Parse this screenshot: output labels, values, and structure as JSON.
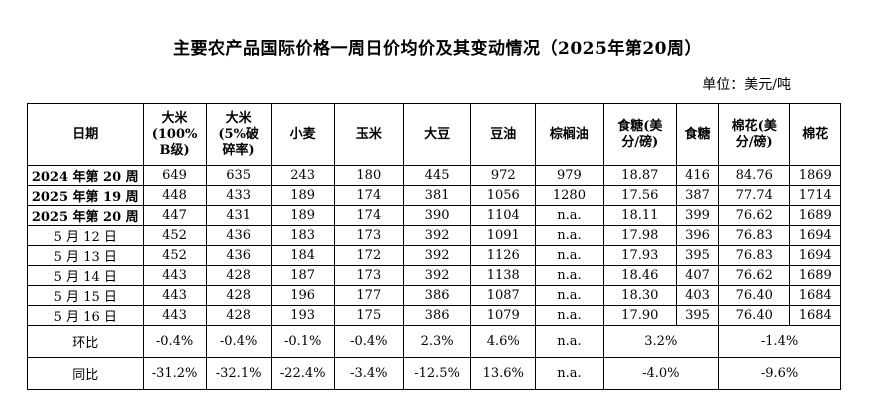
{
  "title": "主要农产品国际价格一周日价均价及其变动情况（2025年第20周）",
  "unit": "单位：美元/吨",
  "table": {
    "headers": [
      "日期",
      "大米（100% B级）",
      "大米（5%破碎率）",
      "小麦",
      "玉米",
      "大豆",
      "豆油",
      "棕榈油",
      "食糖（美分/磅）",
      "食糖",
      "棉花（美分/磅）",
      "棉花"
    ],
    "header_display": [
      "日期",
      "大米\n(100%\nB级)",
      "大米\n(5%破\n碎率)",
      "小麦",
      "玉米",
      "大豆",
      "豆油",
      "棕榈油",
      "食糖(美\n分/磅)",
      "食糖",
      "棉花(美\n分/磅)",
      "棉花"
    ],
    "rows": [
      {
        "label": "2024 年第 20 周",
        "values": [
          "649",
          "635",
          "243",
          "180",
          "445",
          "972",
          "979",
          "18.87",
          "416",
          "84.76",
          "1869"
        ]
      },
      {
        "label": "2025 年第 19 周",
        "values": [
          "448",
          "433",
          "189",
          "174",
          "381",
          "1056",
          "1280",
          "17.56",
          "387",
          "77.74",
          "1714"
        ]
      },
      {
        "label": "2025 年第 20 周",
        "values": [
          "447",
          "431",
          "189",
          "174",
          "390",
          "1104",
          "n.a.",
          "18.11",
          "399",
          "76.62",
          "1689"
        ]
      },
      {
        "label": "5 月 12 日",
        "values": [
          "452",
          "436",
          "183",
          "173",
          "392",
          "1091",
          "n.a.",
          "17.98",
          "396",
          "76.83",
          "1694"
        ]
      },
      {
        "label": "5 月 13 日",
        "values": [
          "452",
          "436",
          "184",
          "172",
          "392",
          "1126",
          "n.a.",
          "17.93",
          "395",
          "76.83",
          "1694"
        ]
      },
      {
        "label": "5 月 14 日",
        "values": [
          "443",
          "428",
          "187",
          "173",
          "392",
          "1138",
          "n.a.",
          "18.46",
          "407",
          "76.62",
          "1689"
        ]
      },
      {
        "label": "5 月 15 日",
        "values": [
          "443",
          "428",
          "196",
          "177",
          "386",
          "1087",
          "n.a.",
          "18.30",
          "403",
          "76.40",
          "1684"
        ]
      },
      {
        "label": "5 月 16 日",
        "values": [
          "443",
          "428",
          "193",
          "175",
          "386",
          "1079",
          "n.a.",
          "17.90",
          "395",
          "76.40",
          "1684"
        ]
      }
    ],
    "change_rows": [
      {
        "label": "环比",
        "values": [
          "-0.4%",
          "-0.4%",
          "-0.1%",
          "-0.4%",
          "2.3%",
          "4.6%",
          "n.a."
        ],
        "sugar": "3.2%",
        "cotton": "-1.4%"
      },
      {
        "label": "同比",
        "values": [
          "-31.2%",
          "-32.1%",
          "-22.4%",
          "-3.4%",
          "-12.5%",
          "13.6%",
          "n.a."
        ],
        "sugar": "-4.0%",
        "cotton": "-9.6%"
      }
    ]
  }
}
